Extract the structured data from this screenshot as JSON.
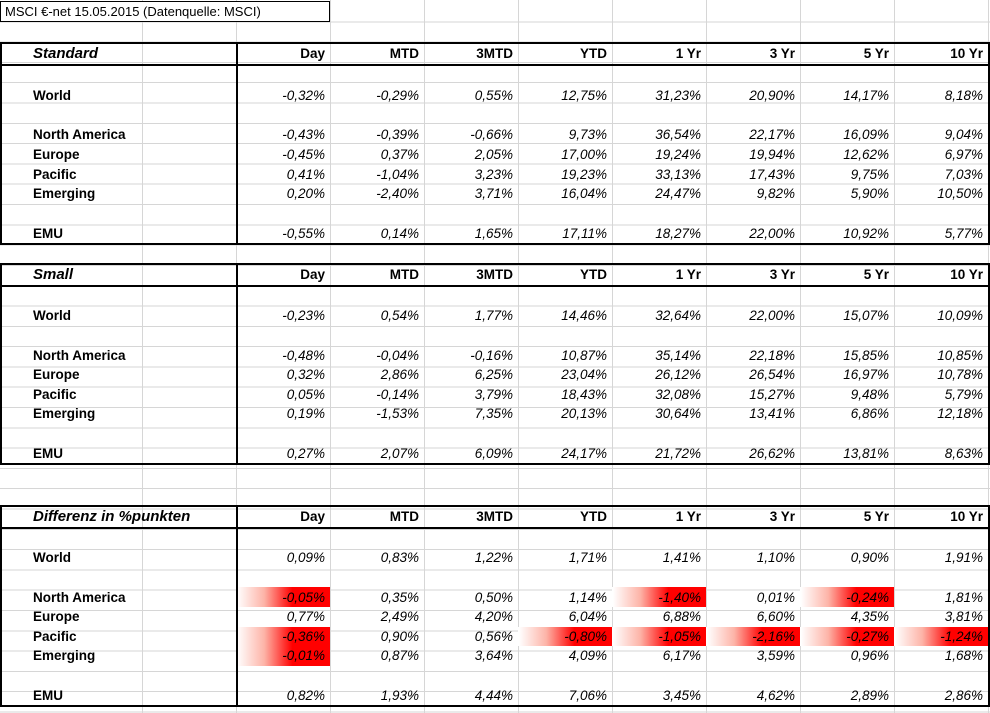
{
  "sheet": {
    "title": "MSCI €-net 15.05.2015 (Datenquelle: MSCI)"
  },
  "colors": {
    "negative_highlight": "#ff0000"
  },
  "columns": [
    "Day",
    "MTD",
    "3MTD",
    "YTD",
    "1 Yr",
    "3 Yr",
    "5 Yr",
    "10 Yr"
  ],
  "tables": [
    {
      "title": "Standard",
      "highlight_negatives": false,
      "rows": [
        {
          "label": "World",
          "values": [
            "-0,32%",
            "-0,29%",
            "0,55%",
            "12,75%",
            "31,23%",
            "20,90%",
            "14,17%",
            "8,18%"
          ]
        },
        {
          "label": "North America",
          "values": [
            "-0,43%",
            "-0,39%",
            "-0,66%",
            "9,73%",
            "36,54%",
            "22,17%",
            "16,09%",
            "9,04%"
          ]
        },
        {
          "label": "Europe",
          "values": [
            "-0,45%",
            "0,37%",
            "2,05%",
            "17,00%",
            "19,24%",
            "19,94%",
            "12,62%",
            "6,97%"
          ]
        },
        {
          "label": "Pacific",
          "values": [
            "0,41%",
            "-1,04%",
            "3,23%",
            "19,23%",
            "33,13%",
            "17,43%",
            "9,75%",
            "7,03%"
          ]
        },
        {
          "label": "Emerging",
          "values": [
            "0,20%",
            "-2,40%",
            "3,71%",
            "16,04%",
            "24,47%",
            "9,82%",
            "5,90%",
            "10,50%"
          ]
        },
        {
          "label": "EMU",
          "values": [
            "-0,55%",
            "0,14%",
            "1,65%",
            "17,11%",
            "18,27%",
            "22,00%",
            "10,92%",
            "5,77%"
          ]
        }
      ]
    },
    {
      "title": "Small",
      "highlight_negatives": false,
      "rows": [
        {
          "label": "World",
          "values": [
            "-0,23%",
            "0,54%",
            "1,77%",
            "14,46%",
            "32,64%",
            "22,00%",
            "15,07%",
            "10,09%"
          ]
        },
        {
          "label": "North America",
          "values": [
            "-0,48%",
            "-0,04%",
            "-0,16%",
            "10,87%",
            "35,14%",
            "22,18%",
            "15,85%",
            "10,85%"
          ]
        },
        {
          "label": "Europe",
          "values": [
            "0,32%",
            "2,86%",
            "6,25%",
            "23,04%",
            "26,12%",
            "26,54%",
            "16,97%",
            "10,78%"
          ]
        },
        {
          "label": "Pacific",
          "values": [
            "0,05%",
            "-0,14%",
            "3,79%",
            "18,43%",
            "32,08%",
            "15,27%",
            "9,48%",
            "5,79%"
          ]
        },
        {
          "label": "Emerging",
          "values": [
            "0,19%",
            "-1,53%",
            "7,35%",
            "20,13%",
            "30,64%",
            "13,41%",
            "6,86%",
            "12,18%"
          ]
        },
        {
          "label": "EMU",
          "values": [
            "0,27%",
            "2,07%",
            "6,09%",
            "24,17%",
            "21,72%",
            "26,62%",
            "13,81%",
            "8,63%"
          ]
        }
      ]
    },
    {
      "title": "Differenz in %punkten",
      "highlight_negatives": true,
      "rows": [
        {
          "label": "World",
          "values": [
            "0,09%",
            "0,83%",
            "1,22%",
            "1,71%",
            "1,41%",
            "1,10%",
            "0,90%",
            "1,91%"
          ]
        },
        {
          "label": "North America",
          "values": [
            "-0,05%",
            "0,35%",
            "0,50%",
            "1,14%",
            "-1,40%",
            "0,01%",
            "-0,24%",
            "1,81%"
          ]
        },
        {
          "label": "Europe",
          "values": [
            "0,77%",
            "2,49%",
            "4,20%",
            "6,04%",
            "6,88%",
            "6,60%",
            "4,35%",
            "3,81%"
          ]
        },
        {
          "label": "Pacific",
          "values": [
            "-0,36%",
            "0,90%",
            "0,56%",
            "-0,80%",
            "-1,05%",
            "-2,16%",
            "-0,27%",
            "-1,24%"
          ]
        },
        {
          "label": "Emerging",
          "values": [
            "-0,01%",
            "0,87%",
            "3,64%",
            "4,09%",
            "6,17%",
            "3,59%",
            "0,96%",
            "1,68%"
          ]
        },
        {
          "label": "EMU",
          "values": [
            "0,82%",
            "1,93%",
            "4,44%",
            "7,06%",
            "3,45%",
            "4,62%",
            "2,89%",
            "2,86%"
          ]
        }
      ]
    }
  ]
}
